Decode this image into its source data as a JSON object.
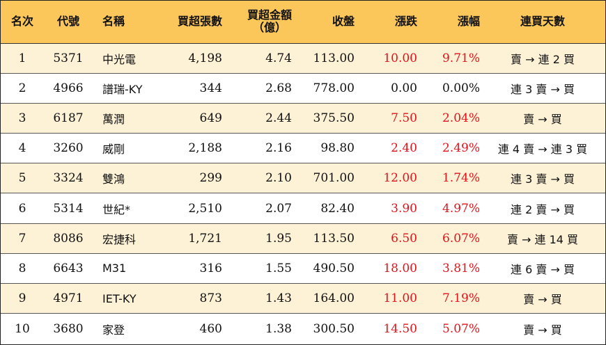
{
  "colors": {
    "header_bg": "#fbc65a",
    "stripe_bg": "#fdf1d6",
    "positive": "#e3131b"
  },
  "header": {
    "rank": "名次",
    "code": "代號",
    "name": "名稱",
    "net_buy_lots": "買超張數",
    "net_buy_amount_line1": "買超金額",
    "net_buy_amount_line2": "（億）",
    "close": "收盤",
    "change": "漲跌",
    "change_pct": "漲幅",
    "streak": "連買天數"
  },
  "rows": [
    {
      "rank": "1",
      "code": "5371",
      "name": "中光電",
      "lots": "4,198",
      "amount": "4.74",
      "close": "113.00",
      "change": "10.00",
      "pct": "9.71%",
      "streak": "賣 → 連 2 買"
    },
    {
      "rank": "2",
      "code": "4966",
      "name": "譜瑞-KY",
      "lots": "344",
      "amount": "2.68",
      "close": "778.00",
      "change": "0.00",
      "pct": "0.00%",
      "streak": "連 3 賣 → 買"
    },
    {
      "rank": "3",
      "code": "6187",
      "name": "萬潤",
      "lots": "649",
      "amount": "2.44",
      "close": "375.50",
      "change": "7.50",
      "pct": "2.04%",
      "streak": "賣 → 買"
    },
    {
      "rank": "4",
      "code": "3260",
      "name": "威剛",
      "lots": "2,188",
      "amount": "2.16",
      "close": "98.80",
      "change": "2.40",
      "pct": "2.49%",
      "streak": "連 4 賣 → 連 3 買"
    },
    {
      "rank": "5",
      "code": "3324",
      "name": "雙鴻",
      "lots": "299",
      "amount": "2.10",
      "close": "701.00",
      "change": "12.00",
      "pct": "1.74%",
      "streak": "連 3 賣 → 買"
    },
    {
      "rank": "6",
      "code": "5314",
      "name": "世紀*",
      "lots": "2,510",
      "amount": "2.07",
      "close": "82.40",
      "change": "3.90",
      "pct": "4.97%",
      "streak": "連 2 賣 → 買"
    },
    {
      "rank": "7",
      "code": "8086",
      "name": "宏捷科",
      "lots": "1,721",
      "amount": "1.95",
      "close": "113.50",
      "change": "6.50",
      "pct": "6.07%",
      "streak": "賣 → 連 14 買"
    },
    {
      "rank": "8",
      "code": "6643",
      "name": "M31",
      "lots": "316",
      "amount": "1.55",
      "close": "490.50",
      "change": "18.00",
      "pct": "3.81%",
      "streak": "連 6 賣 → 買"
    },
    {
      "rank": "9",
      "code": "4971",
      "name": "IET-KY",
      "lots": "873",
      "amount": "1.43",
      "close": "164.00",
      "change": "11.00",
      "pct": "7.19%",
      "streak": "賣 → 買"
    },
    {
      "rank": "10",
      "code": "3680",
      "name": "家登",
      "lots": "460",
      "amount": "1.38",
      "close": "300.50",
      "change": "14.50",
      "pct": "5.07%",
      "streak": "賣 → 買"
    }
  ]
}
